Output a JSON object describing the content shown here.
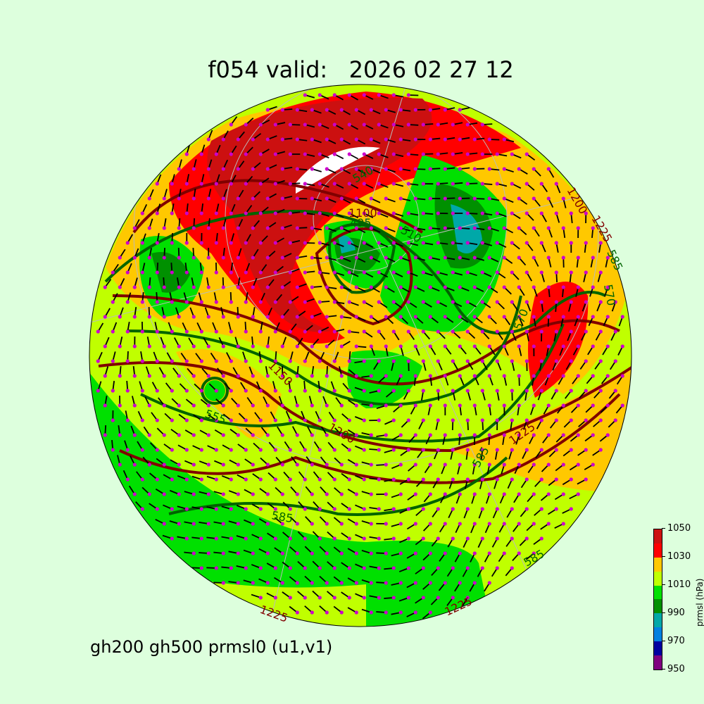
{
  "title": "f054 valid:   2026 02 27 12",
  "subtitle": "gh200 gh500 prmsl0 (u1,v1)",
  "colorbar": {
    "label": "prmsl (hPa)",
    "ticks": [
      "950",
      "970",
      "990",
      "1010",
      "1030",
      "1050"
    ],
    "bins": [
      {
        "from": 950,
        "to": 960,
        "color": "#800080"
      },
      {
        "from": 960,
        "to": 970,
        "color": "#0000a0"
      },
      {
        "from": 970,
        "to": 980,
        "color": "#0080e0"
      },
      {
        "from": 980,
        "to": 990,
        "color": "#00a8a8"
      },
      {
        "from": 990,
        "to": 1000,
        "color": "#009000"
      },
      {
        "from": 1000,
        "to": 1010,
        "color": "#00e000"
      },
      {
        "from": 1010,
        "to": 1020,
        "color": "#c0ff00"
      },
      {
        "from": 1020,
        "to": 1030,
        "color": "#ffc800"
      },
      {
        "from": 1030,
        "to": 1040,
        "color": "#ff0000"
      },
      {
        "from": 1040,
        "to": 1050,
        "color": "#cc1010"
      }
    ]
  },
  "contour_labels": {
    "gh200": [
      "1100",
      "1200",
      "1225",
      "1225",
      "1225",
      "1200",
      "1225",
      "1150"
    ],
    "gh500": [
      "495",
      "510",
      "540",
      "555",
      "585",
      "585",
      "585",
      "570",
      "585",
      "570"
    ]
  },
  "colors": {
    "gh200": "#800000",
    "gh500": "#006400",
    "barbs": "#000000",
    "stations": "#cc00cc",
    "background": "#ddffdd"
  }
}
